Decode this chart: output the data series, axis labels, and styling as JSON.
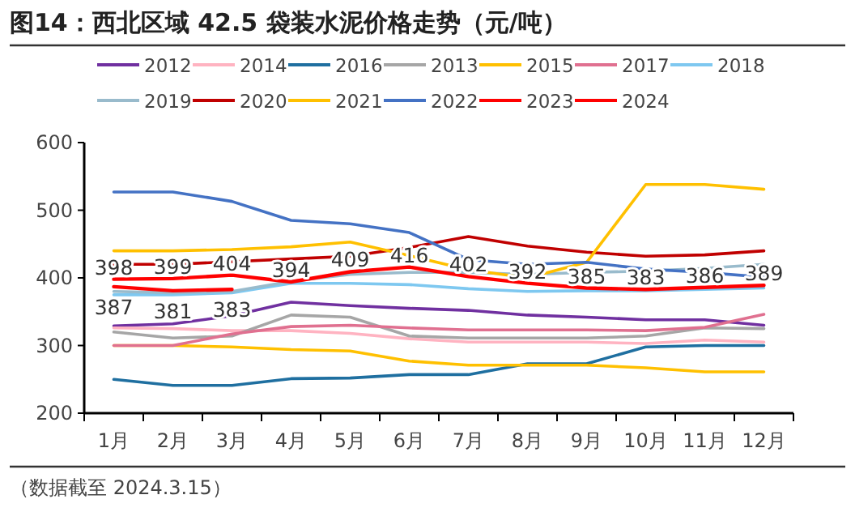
{
  "chart_data": {
    "type": "line",
    "title": "图14：西北区域 42.5 袋装水泥价格走势（元/吨）",
    "annotations": [
      "（数据截至 2024.3.15）"
    ],
    "categories": [
      "1月",
      "2月",
      "3月",
      "4月",
      "5月",
      "6月",
      "7月",
      "8月",
      "9月",
      "10月",
      "11月",
      "12月"
    ],
    "ylim": [
      200,
      600
    ],
    "yticks": [
      200,
      300,
      400,
      500,
      600
    ],
    "grid": false,
    "legend": "top",
    "marker": "none",
    "line_style": "solid",
    "series": [
      {
        "name": "2012",
        "color": "#7030a0",
        "values": [
          329,
          332,
          344,
          364,
          359,
          355,
          352,
          345,
          342,
          338,
          338,
          330
        ]
      },
      {
        "name": "2014",
        "color": "#ffb3c1",
        "values": [
          326,
          325,
          322,
          322,
          318,
          310,
          305,
          305,
          305,
          303,
          308,
          305
        ]
      },
      {
        "name": "2016",
        "color": "#1f6fa0",
        "values": [
          250,
          241,
          241,
          251,
          252,
          257,
          257,
          273,
          273,
          298,
          300,
          300
        ]
      },
      {
        "name": "2013",
        "color": "#a6a6a6",
        "values": [
          320,
          311,
          314,
          345,
          342,
          314,
          311,
          311,
          311,
          314,
          326,
          325
        ]
      },
      {
        "name": "2015",
        "color": "#ffc000",
        "values": [
          300,
          300,
          298,
          294,
          292,
          277,
          271,
          271,
          271,
          267,
          261,
          261
        ]
      },
      {
        "name": "2017",
        "color": "#e07090",
        "values": [
          300,
          300,
          317,
          328,
          330,
          326,
          323,
          323,
          323,
          322,
          327,
          346
        ]
      },
      {
        "name": "2018",
        "color": "#7ec8f0",
        "values": [
          375,
          375,
          378,
          392,
          392,
          390,
          384,
          380,
          381,
          381,
          383,
          385
        ]
      },
      {
        "name": "2019",
        "color": "#99bbcc",
        "values": [
          380,
          378,
          380,
          395,
          405,
          408,
          408,
          405,
          408,
          410,
          414,
          420
        ]
      },
      {
        "name": "2020",
        "color": "#c00000",
        "values": [
          420,
          420,
          424,
          428,
          432,
          445,
          461,
          447,
          438,
          432,
          434,
          440
        ]
      },
      {
        "name": "2021",
        "color": "#ffc000",
        "values": [
          440,
          440,
          442,
          446,
          453,
          433,
          412,
          400,
          423,
          538,
          538,
          531
        ]
      },
      {
        "name": "2022",
        "color": "#4472c4",
        "values": [
          527,
          527,
          513,
          485,
          480,
          467,
          427,
          420,
          423,
          413,
          408,
          401
        ]
      },
      {
        "name": "2023",
        "color": "#ff0000",
        "values": [
          398,
          399,
          404,
          394,
          409,
          416,
          402,
          392,
          385,
          383,
          386,
          389
        ],
        "value_labels": [
          "398",
          "399",
          "404",
          "394",
          "409",
          "416",
          "402",
          "392",
          "385",
          "383",
          "386",
          "389"
        ]
      },
      {
        "name": "2024",
        "color": "#ff0000",
        "values": [
          387,
          381,
          383,
          null,
          null,
          null,
          null,
          null,
          null,
          null,
          null,
          null
        ],
        "value_labels": [
          "387",
          "381",
          "383",
          null,
          null,
          null,
          null,
          null,
          null,
          null,
          null,
          null
        ]
      }
    ]
  }
}
